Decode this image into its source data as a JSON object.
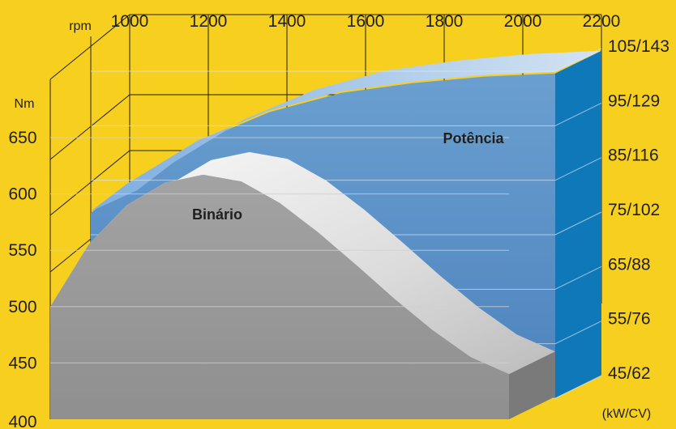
{
  "chart_data": {
    "type": "area",
    "x_unit": "rpm",
    "x": [
      1000,
      1200,
      1400,
      1600,
      1800,
      2000,
      2200
    ],
    "torque": {
      "name": "Binário",
      "unit": "Nm",
      "ylim": [
        400,
        650
      ],
      "ticks": [
        400,
        450,
        500,
        550,
        600,
        650
      ],
      "points": [
        [
          900,
          500
        ],
        [
          1000,
          555
        ],
        [
          1100,
          590
        ],
        [
          1200,
          610
        ],
        [
          1300,
          617
        ],
        [
          1400,
          611
        ],
        [
          1500,
          592
        ],
        [
          1600,
          566
        ],
        [
          1700,
          537
        ],
        [
          1800,
          507
        ],
        [
          1900,
          479
        ],
        [
          2000,
          455
        ],
        [
          2100,
          440
        ]
      ]
    },
    "power": {
      "name": "Potência",
      "unit": "(kW/CV)",
      "ylim": [
        "45/62",
        "105/143"
      ],
      "ticks": [
        "45/62",
        "55/76",
        "65/88",
        "75/102",
        "85/116",
        "95/129",
        "105/143"
      ],
      "points": [
        [
          900,
          79
        ],
        [
          1000,
          84
        ],
        [
          1200,
          92
        ],
        [
          1400,
          97.5
        ],
        [
          1600,
          101
        ],
        [
          1800,
          102.8
        ],
        [
          2000,
          104
        ],
        [
          2200,
          104.6
        ]
      ]
    },
    "grid": true,
    "colors": {
      "background": "#f7cf1e",
      "torque": "#a7a7a7",
      "power": "#5b8ec2",
      "power_side": "#0f78b8",
      "grid": "#1f1f1f"
    }
  }
}
